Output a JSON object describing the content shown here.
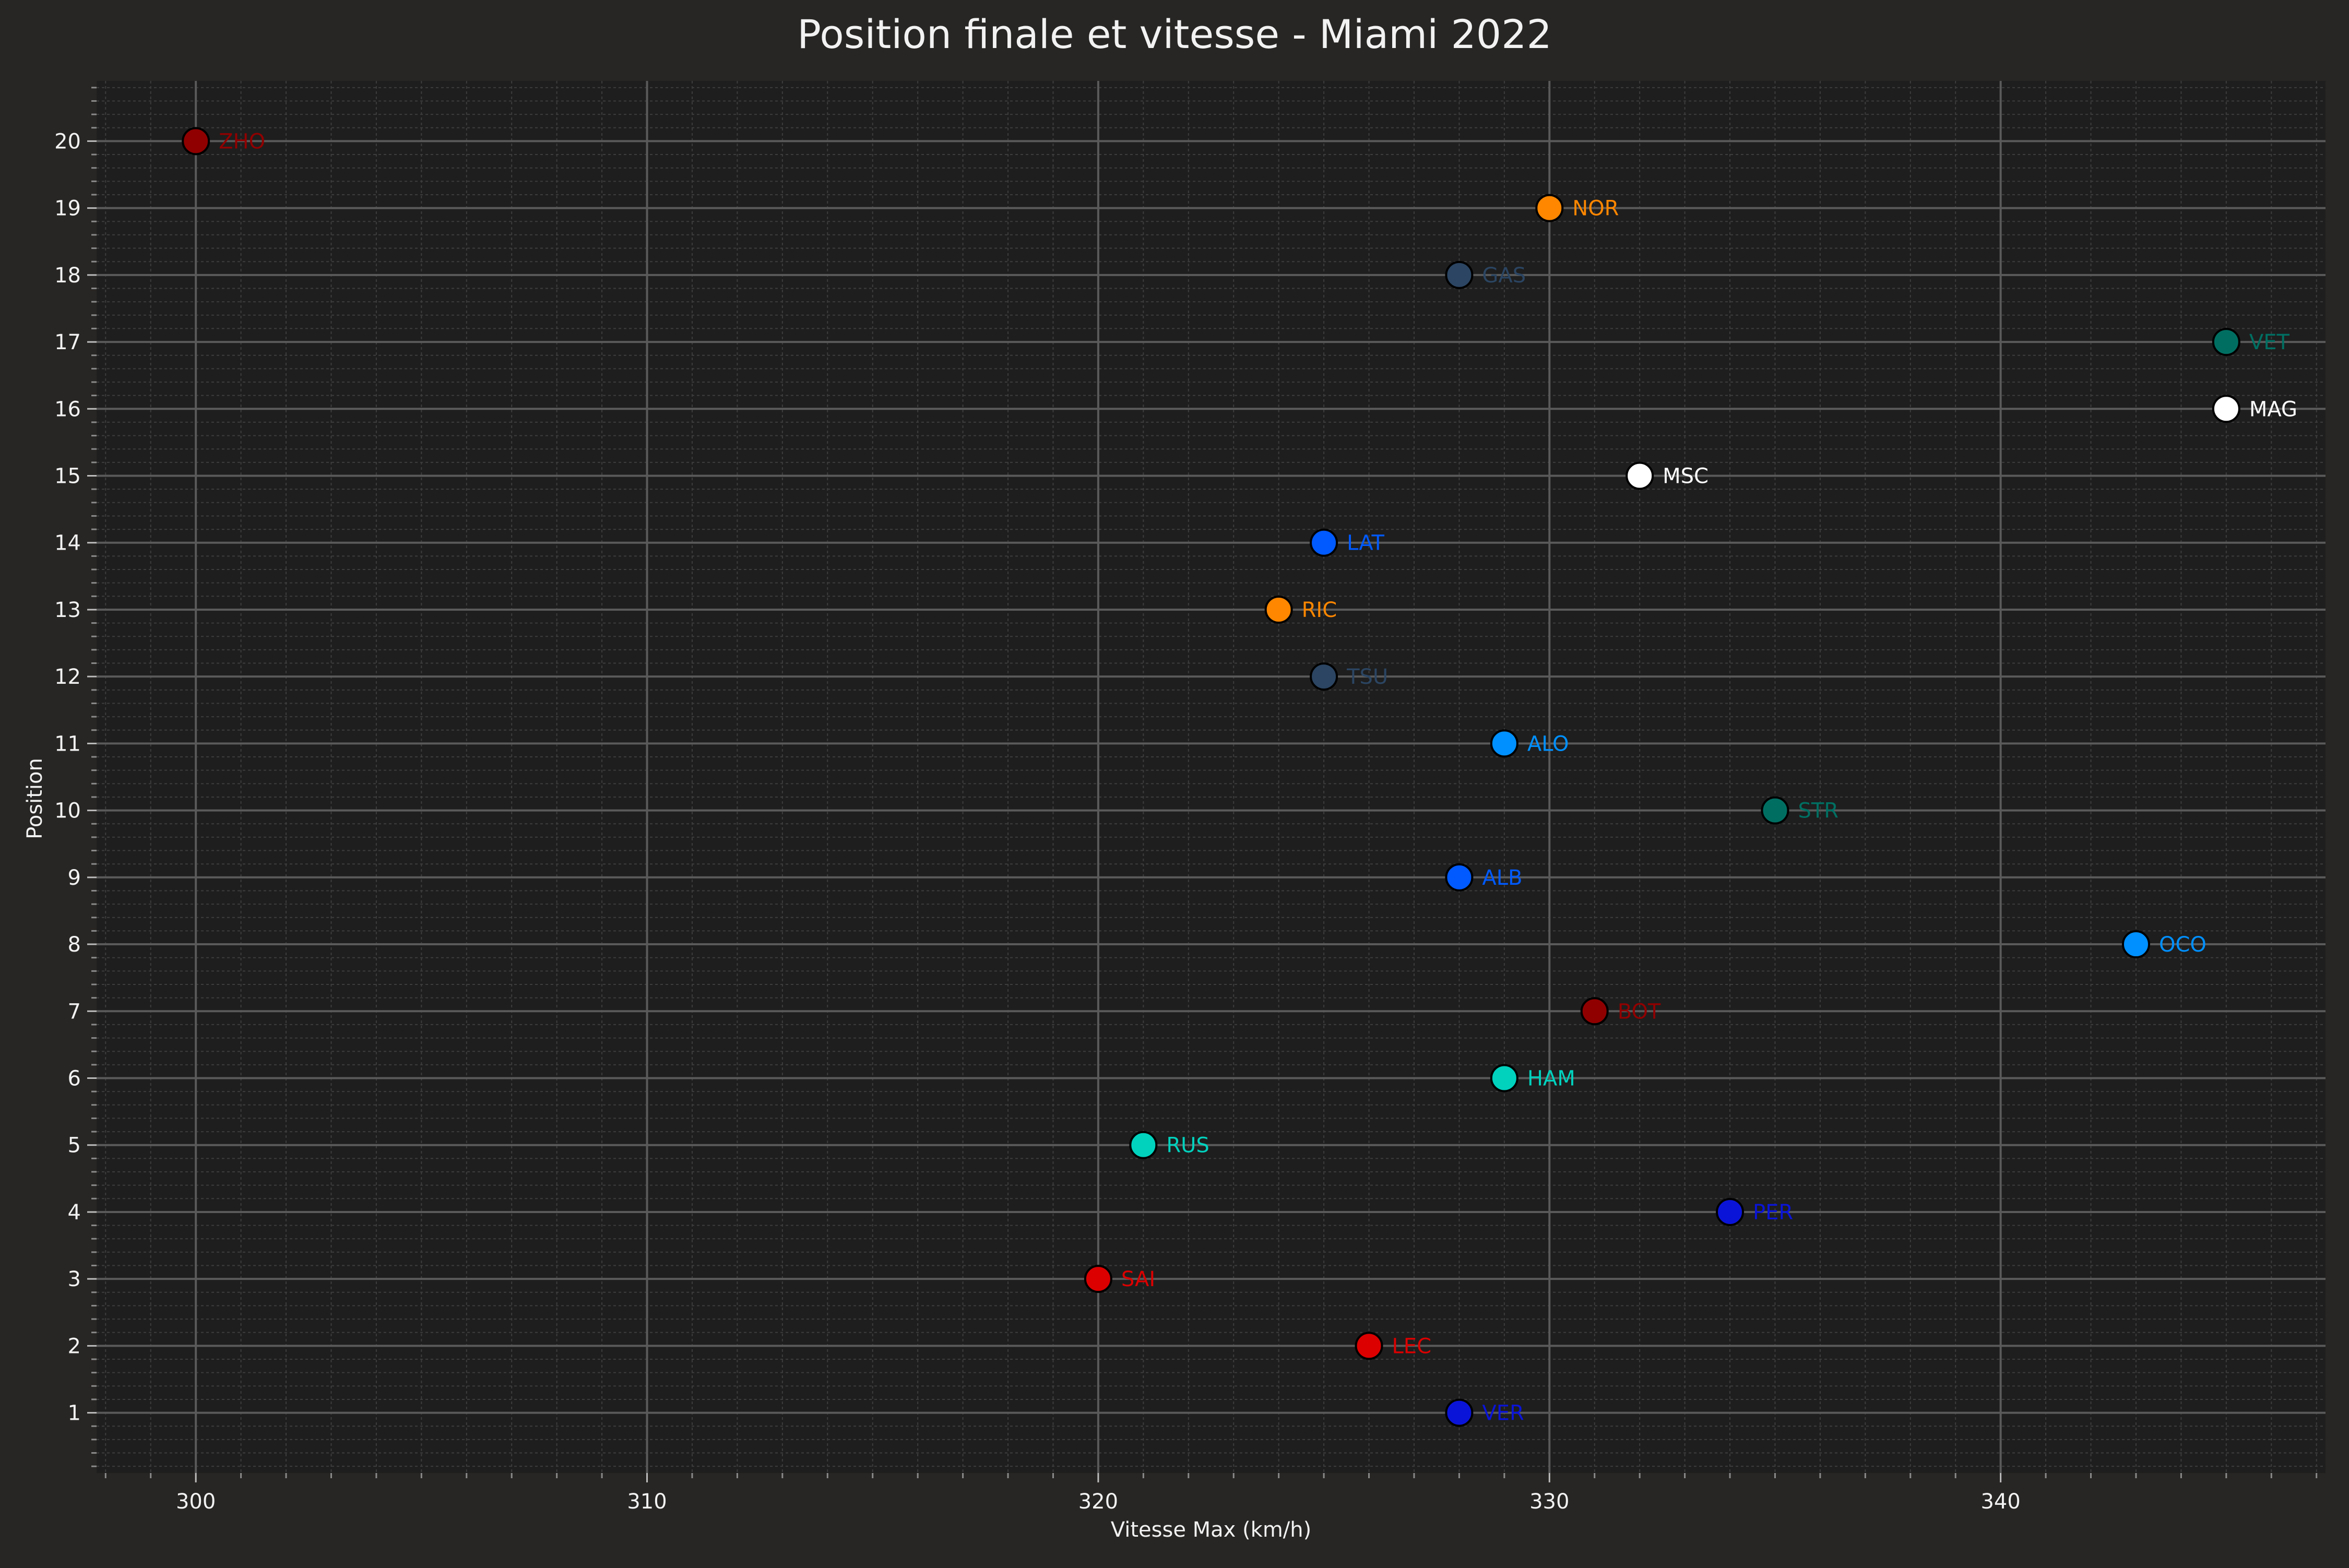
{
  "chart_data": {
    "type": "scatter",
    "title": "Position finale et vitesse - Miami 2022",
    "xlabel": "Vitesse Max (km/h)",
    "ylabel": "Position",
    "xlim": [
      297.8,
      347.2
    ],
    "ylim": [
      0.1,
      20.9
    ],
    "xticks": [
      300,
      310,
      320,
      330,
      340
    ],
    "yticks": [
      1,
      2,
      3,
      4,
      5,
      6,
      7,
      8,
      9,
      10,
      11,
      12,
      13,
      14,
      15,
      16,
      17,
      18,
      19,
      20
    ],
    "grid": true,
    "legend": "none",
    "colors": {
      "figure_background": "#282624",
      "axes_background": "#1e1e1e",
      "text": "#f2f2f2",
      "major_grid": "#5a5a5a",
      "minor_grid": "#3d3d3d"
    },
    "points": [
      {
        "label": "VER",
        "x": 328,
        "y": 1,
        "color": "#0a14d8"
      },
      {
        "label": "LEC",
        "x": 326,
        "y": 2,
        "color": "#dc0000"
      },
      {
        "label": "SAI",
        "x": 320,
        "y": 3,
        "color": "#dc0000"
      },
      {
        "label": "PER",
        "x": 334,
        "y": 4,
        "color": "#0a14d8"
      },
      {
        "label": "RUS",
        "x": 321,
        "y": 5,
        "color": "#00d2be"
      },
      {
        "label": "HAM",
        "x": 329,
        "y": 6,
        "color": "#00d2be"
      },
      {
        "label": "BOT",
        "x": 331,
        "y": 7,
        "color": "#900000"
      },
      {
        "label": "OCO",
        "x": 343,
        "y": 8,
        "color": "#0090ff"
      },
      {
        "label": "ALB",
        "x": 328,
        "y": 9,
        "color": "#005aff"
      },
      {
        "label": "STR",
        "x": 335,
        "y": 10,
        "color": "#006f62"
      },
      {
        "label": "ALO",
        "x": 329,
        "y": 11,
        "color": "#0090ff"
      },
      {
        "label": "TSU",
        "x": 325,
        "y": 12,
        "color": "#2b4562"
      },
      {
        "label": "RIC",
        "x": 324,
        "y": 13,
        "color": "#ff8700"
      },
      {
        "label": "LAT",
        "x": 325,
        "y": 14,
        "color": "#005aff"
      },
      {
        "label": "MSC",
        "x": 332,
        "y": 15,
        "color": "#ffffff"
      },
      {
        "label": "MAG",
        "x": 345,
        "y": 16,
        "color": "#ffffff"
      },
      {
        "label": "VET",
        "x": 345,
        "y": 17,
        "color": "#006f62"
      },
      {
        "label": "GAS",
        "x": 328,
        "y": 18,
        "color": "#2b4562"
      },
      {
        "label": "NOR",
        "x": 330,
        "y": 19,
        "color": "#ff8700"
      },
      {
        "label": "ZHO",
        "x": 300,
        "y": 20,
        "color": "#900000"
      }
    ]
  }
}
